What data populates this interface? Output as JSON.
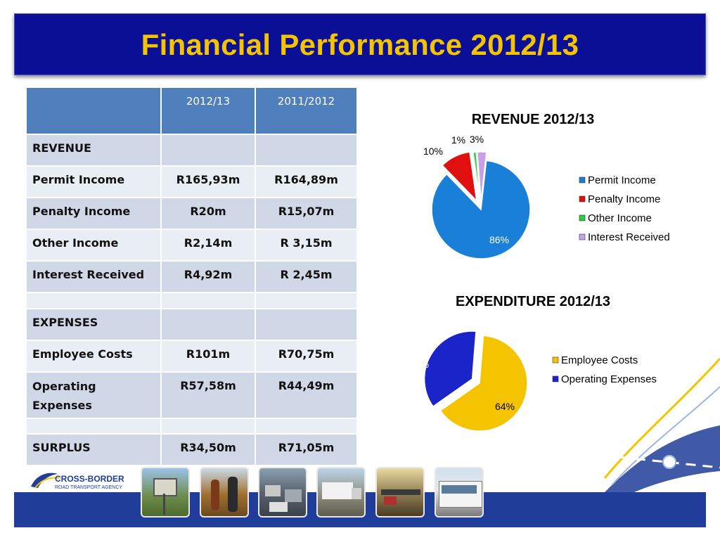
{
  "title": "Financial Performance 2012/13",
  "table": {
    "headers": [
      "",
      "2012/13",
      "2011/2012"
    ],
    "rows": [
      {
        "label": "REVENUE",
        "v1": "",
        "v2": ""
      },
      {
        "label": "Permit Income",
        "v1": "R165,93m",
        "v2": "R164,89m"
      },
      {
        "label": "Penalty Income",
        "v1": "R20m",
        "v2": "R15,07m"
      },
      {
        "label": "Other Income",
        "v1": "R2,14m",
        "v2": "R 3,15m"
      },
      {
        "label": "Interest Received",
        "v1": "R4,92m",
        "v2": "R 2,45m"
      },
      {
        "label": "",
        "v1": "",
        "v2": ""
      },
      {
        "label": "EXPENSES",
        "v1": "",
        "v2": ""
      },
      {
        "label": "Employee Costs",
        "v1": "R101m",
        "v2": "R70,75m"
      },
      {
        "label": "Operating Expenses",
        "v1": "R57,58m",
        "v2": "R44,49m"
      },
      {
        "label": "",
        "v1": "",
        "v2": ""
      },
      {
        "label": "SURPLUS",
        "v1": "R34,50m",
        "v2": "R71,05m"
      }
    ]
  },
  "logo": {
    "line1": "CROSS-BORDER",
    "line2": "ROAD TRANSPORT AGENCY"
  },
  "chart_data": [
    {
      "type": "pie",
      "title": "REVENUE 2012/13",
      "categories": [
        "Permit Income",
        "Penalty Income",
        "Other Income",
        "Interest Received"
      ],
      "values": [
        86,
        10,
        1,
        3
      ],
      "labels": [
        "86%",
        "10%",
        "1%",
        "3%"
      ],
      "colors": [
        "#1a7fd6",
        "#e01010",
        "#2ecc40",
        "#c8a0e8"
      ],
      "exploded": true,
      "legend_position": "right"
    },
    {
      "type": "pie",
      "title": "EXPENDITURE 2012/13",
      "categories": [
        "Employee Costs",
        "Operating Expenses"
      ],
      "values": [
        64,
        36
      ],
      "labels": [
        "64%",
        "36%"
      ],
      "colors": [
        "#f5c400",
        "#1a24c8"
      ],
      "exploded": true,
      "legend_position": "right"
    }
  ]
}
